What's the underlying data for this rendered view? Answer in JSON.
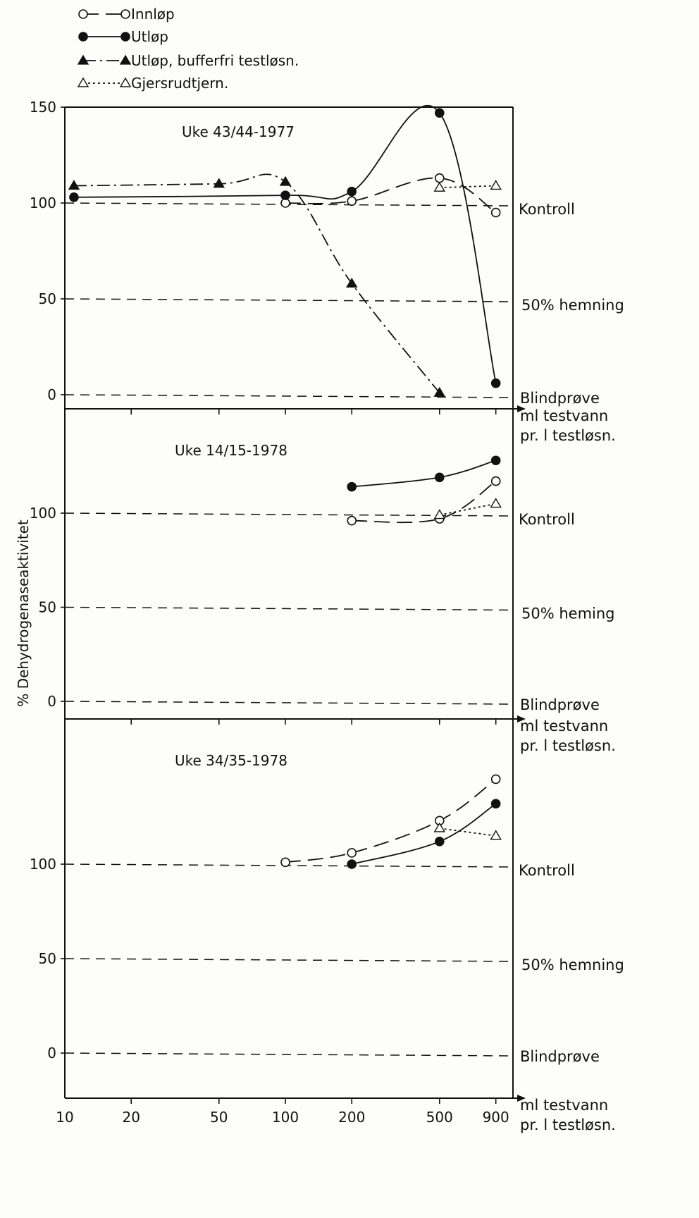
{
  "legend": [
    {
      "marker": "circle-open",
      "line": "long-dash",
      "label": "Innløp"
    },
    {
      "marker": "circle-filled",
      "line": "solid",
      "label": "Utløp"
    },
    {
      "marker": "triangle-filled",
      "line": "dash-dot",
      "label": "Utløp, bufferfri testløsn."
    },
    {
      "marker": "triangle-open",
      "line": "dotted",
      "label": "Gjersrudtjern."
    }
  ],
  "ylabel": "% Dehydrogenaseaktivitet",
  "axis_label": [
    "ml testvann",
    "pr. l testløsn."
  ],
  "x_ticks": [
    "10",
    "20",
    "50",
    "100",
    "200",
    "500",
    "900"
  ],
  "ref_labels": {
    "kontroll": "Kontroll",
    "blind": "Blindprøve"
  },
  "chart_data": [
    {
      "type": "line",
      "title": "Uke 43/44-1977",
      "xscale": "log",
      "xlim": [
        10,
        1000
      ],
      "ylim": [
        0,
        150
      ],
      "y_ticks": [
        "150",
        "100",
        "50",
        "0"
      ],
      "hemning_label": "50% hemning",
      "series": [
        {
          "name": "Innløp",
          "points": [
            [
              100,
              100
            ],
            [
              200,
              101
            ],
            [
              500,
              113
            ],
            [
              900,
              95
            ]
          ]
        },
        {
          "name": "Utløp",
          "points": [
            [
              11,
              103
            ],
            [
              100,
              104
            ],
            [
              200,
              106
            ],
            [
              500,
              147
            ],
            [
              900,
              6
            ]
          ]
        },
        {
          "name": "Utløp, bufferfri testløsn.",
          "points": [
            [
              11,
              109
            ],
            [
              50,
              110
            ],
            [
              100,
              111
            ],
            [
              200,
              58
            ],
            [
              500,
              1
            ]
          ]
        },
        {
          "name": "Gjersrudtjern.",
          "points": [
            [
              500,
              108
            ],
            [
              900,
              109
            ]
          ]
        }
      ]
    },
    {
      "type": "line",
      "title": "Uke 14/15-1978",
      "xscale": "log",
      "xlim": [
        10,
        1000
      ],
      "ylim": [
        0,
        150
      ],
      "y_ticks": [
        "100",
        "50",
        "0"
      ],
      "hemning_label": "50% heming",
      "series": [
        {
          "name": "Innløp",
          "points": [
            [
              200,
              96
            ],
            [
              500,
              97
            ],
            [
              900,
              117
            ]
          ]
        },
        {
          "name": "Utløp",
          "points": [
            [
              200,
              114
            ],
            [
              500,
              119
            ],
            [
              900,
              128
            ]
          ]
        },
        {
          "name": "Gjersrudtjern.",
          "points": [
            [
              500,
              99
            ],
            [
              900,
              105
            ]
          ]
        }
      ]
    },
    {
      "type": "line",
      "title": "Uke 34/35-1978",
      "xscale": "log",
      "xlim": [
        10,
        1000
      ],
      "ylim": [
        0,
        150
      ],
      "y_ticks": [
        "100",
        "50",
        "0"
      ],
      "hemning_label": "50% hemning",
      "series": [
        {
          "name": "Innløp",
          "points": [
            [
              100,
              101
            ],
            [
              200,
              106
            ],
            [
              500,
              123
            ],
            [
              900,
              145
            ]
          ]
        },
        {
          "name": "Utløp",
          "points": [
            [
              200,
              100
            ],
            [
              500,
              112
            ],
            [
              900,
              132
            ]
          ]
        },
        {
          "name": "Gjersrudtjern.",
          "points": [
            [
              500,
              119
            ],
            [
              900,
              115
            ]
          ]
        }
      ]
    }
  ]
}
